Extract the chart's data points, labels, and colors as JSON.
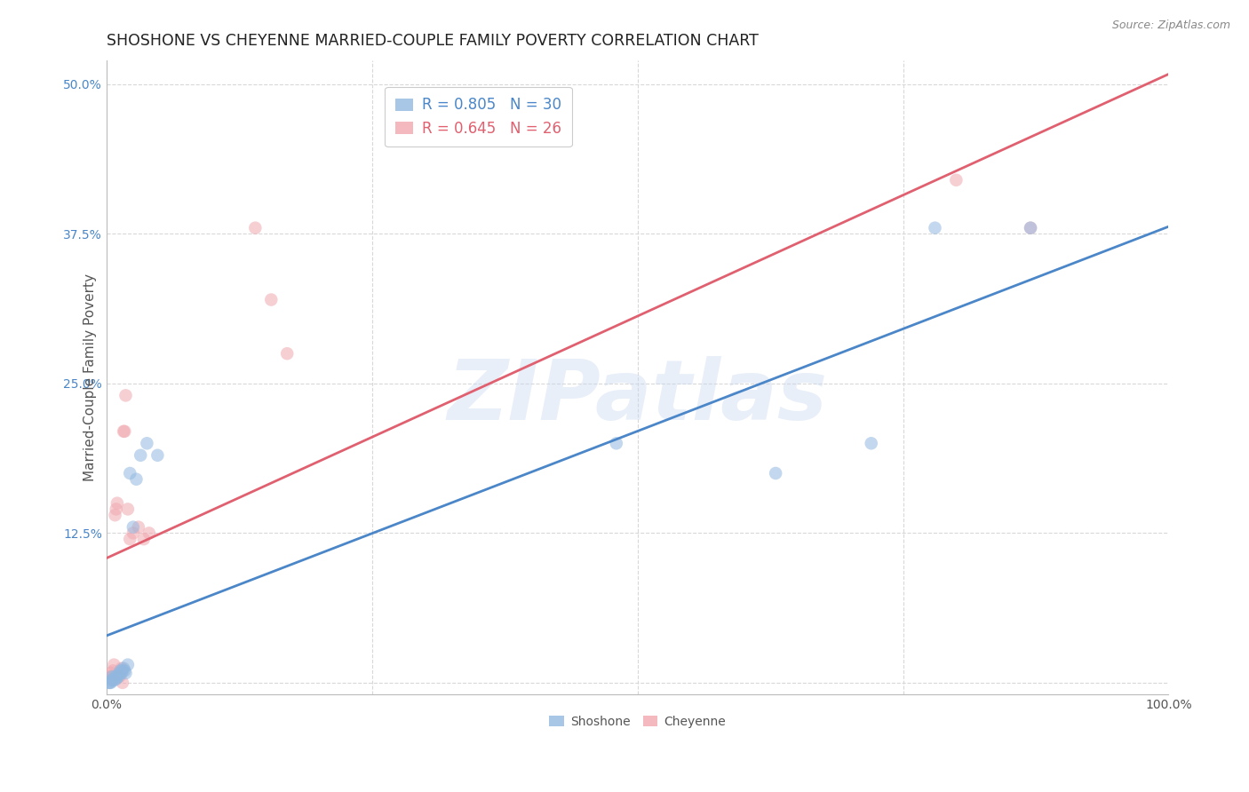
{
  "title": "SHOSHONE VS CHEYENNE MARRIED-COUPLE FAMILY POVERTY CORRELATION CHART",
  "source": "Source: ZipAtlas.com",
  "ylabel_label": "Married-Couple Family Poverty",
  "xlim": [
    0,
    1.0
  ],
  "ylim": [
    -0.01,
    0.52
  ],
  "xticks": [
    0.0,
    0.25,
    0.5,
    0.75,
    1.0
  ],
  "xtick_labels": [
    "0.0%",
    "",
    "",
    "",
    "100.0%"
  ],
  "yticks": [
    0.0,
    0.125,
    0.25,
    0.375,
    0.5
  ],
  "ytick_labels": [
    "",
    "12.5%",
    "25.0%",
    "37.5%",
    "50.0%"
  ],
  "shoshone_color": "#92b8e0",
  "cheyenne_color": "#f0a8b0",
  "shoshone_line_color": "#4a86c8",
  "cheyenne_line_color": "#e06070",
  "legend_r_shoshone": "R = 0.805",
  "legend_n_shoshone": "N = 30",
  "legend_r_cheyenne": "R = 0.645",
  "legend_n_cheyenne": "N = 26",
  "shoshone_x": [
    0.002,
    0.003,
    0.004,
    0.005,
    0.005,
    0.006,
    0.007,
    0.008,
    0.009,
    0.01,
    0.011,
    0.012,
    0.013,
    0.014,
    0.015,
    0.016,
    0.017,
    0.018,
    0.02,
    0.022,
    0.025,
    0.028,
    0.032,
    0.038,
    0.048,
    0.48,
    0.63,
    0.72,
    0.78,
    0.87
  ],
  "shoshone_y": [
    0.0,
    0.0,
    0.0,
    0.002,
    0.005,
    0.003,
    0.002,
    0.005,
    0.003,
    0.005,
    0.005,
    0.008,
    0.01,
    0.008,
    0.01,
    0.012,
    0.01,
    0.008,
    0.015,
    0.175,
    0.13,
    0.17,
    0.19,
    0.2,
    0.19,
    0.2,
    0.175,
    0.2,
    0.38,
    0.38
  ],
  "cheyenne_x": [
    0.003,
    0.004,
    0.005,
    0.006,
    0.007,
    0.008,
    0.009,
    0.01,
    0.012,
    0.013,
    0.014,
    0.015,
    0.016,
    0.017,
    0.018,
    0.02,
    0.022,
    0.025,
    0.03,
    0.035,
    0.04,
    0.14,
    0.155,
    0.17,
    0.8,
    0.87
  ],
  "cheyenne_y": [
    0.005,
    0.008,
    0.005,
    0.01,
    0.015,
    0.14,
    0.145,
    0.15,
    0.005,
    0.008,
    0.012,
    0.0,
    0.21,
    0.21,
    0.24,
    0.145,
    0.12,
    0.125,
    0.13,
    0.12,
    0.125,
    0.38,
    0.32,
    0.275,
    0.42,
    0.38
  ],
  "watermark_text": "ZIPatlas",
  "watermark_color": "#c8d8f0",
  "watermark_alpha": 0.4,
  "background_color": "#ffffff",
  "grid_color": "#d8d8d8",
  "marker_size": 110,
  "marker_alpha": 0.55,
  "title_fontsize": 12.5,
  "axis_label_fontsize": 11,
  "tick_fontsize": 10,
  "legend_fontsize": 12,
  "source_fontsize": 9
}
